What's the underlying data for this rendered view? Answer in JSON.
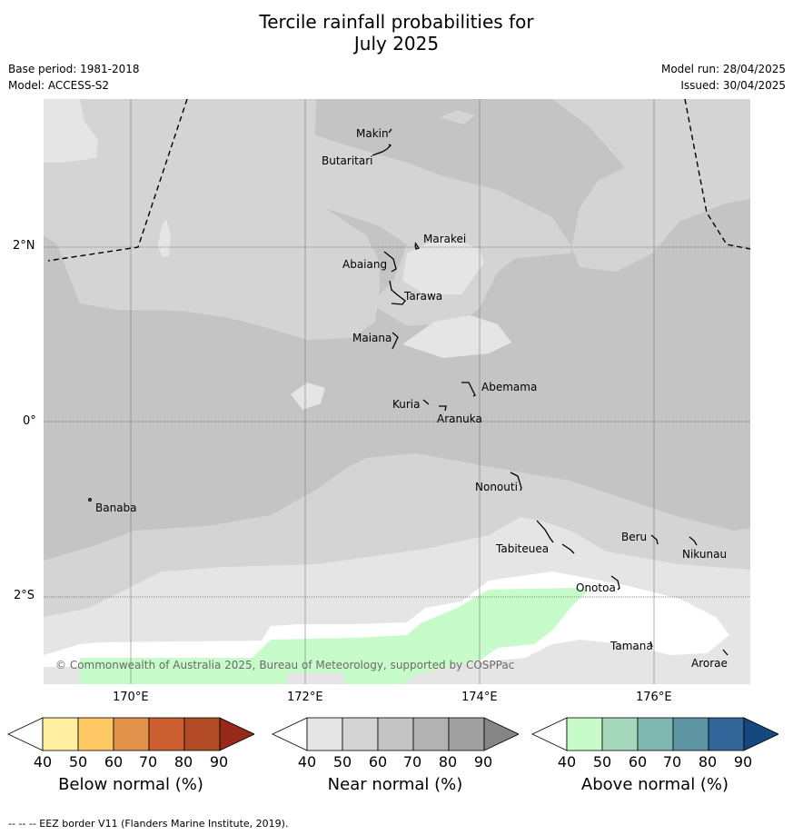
{
  "title_line1": "Tercile rainfall probabilities for",
  "title_line2": "July 2025",
  "base_period": "Base period: 1981-2018",
  "model": "Model: ACCESS-S2",
  "model_run": "Model run: 28/04/2025",
  "issued": "Issued: 30/04/2025",
  "copyright": "© Commonwealth of Australia 2025, Bureau of Meteorology, supported by COSPPac",
  "longitude_labels": [
    "170°E",
    "172°E",
    "174°E",
    "176°E"
  ],
  "latitude_labels": [
    "2°N",
    "0°",
    "2°S"
  ],
  "islands": [
    "Makin",
    "Butaritari",
    "Marakei",
    "Abaiang",
    "Tarawa",
    "Maiana",
    "Abemama",
    "Kuria",
    "Aranuka",
    "Nonouti",
    "Banaba",
    "Tabiteuea",
    "Beru",
    "Nikunau",
    "Onotoa",
    "Tamana",
    "Arorae"
  ],
  "colorbars": [
    {
      "title": "Below normal (%)",
      "ticks": [
        "40",
        "50",
        "60",
        "70",
        "80",
        "90"
      ],
      "colors": [
        "#ffffff",
        "#ffeda0",
        "#fec965",
        "#e2924a",
        "#cc5f30",
        "#b24a26",
        "#952a18"
      ]
    },
    {
      "title": "Near normal (%)",
      "ticks": [
        "40",
        "50",
        "60",
        "70",
        "80",
        "90"
      ],
      "colors": [
        "#ffffff",
        "#e5e5e5",
        "#d4d4d4",
        "#c4c4c4",
        "#b2b2b2",
        "#a0a0a0",
        "#858585"
      ]
    },
    {
      "title": "Above normal (%)",
      "ticks": [
        "40",
        "50",
        "60",
        "70",
        "80",
        "90"
      ],
      "colors": [
        "#ffffff",
        "#c7fcca",
        "#a6d8bb",
        "#7fb7b1",
        "#5e95a3",
        "#33669a",
        "#144980"
      ]
    }
  ],
  "footer": "--  --  -- EEZ border V11 (Flanders Marine Institute, 2019).",
  "colors": {
    "near_40_50": "#e5e5e5",
    "near_50_60": "#d4d4d4",
    "near_60_70": "#c4c4c4",
    "above_40_50": "#c7fcca",
    "blank": "#ffffff"
  }
}
